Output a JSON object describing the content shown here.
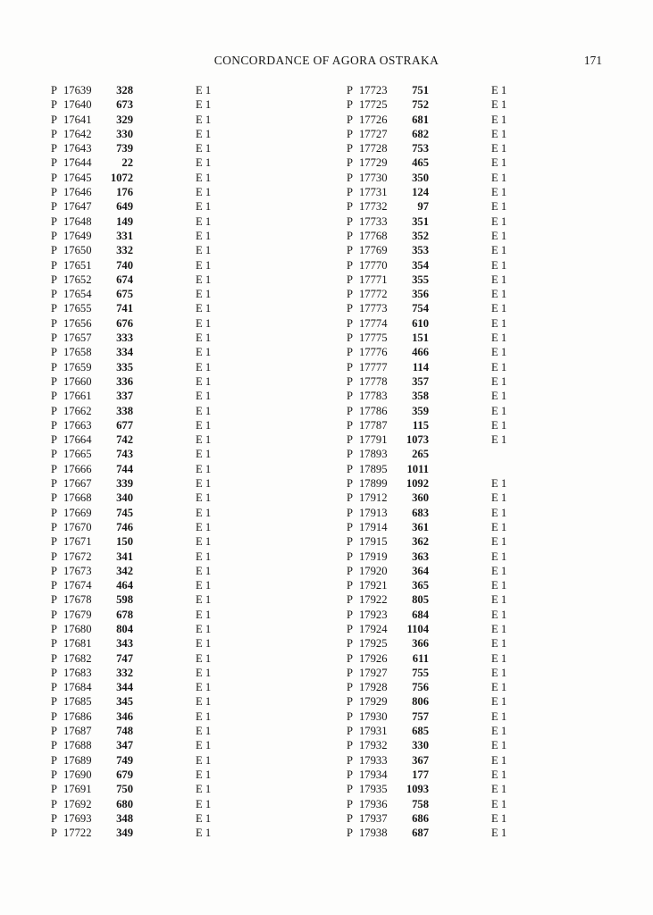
{
  "page": {
    "title": "CONCORDANCE OF AGORA OSTRAKA",
    "page_number": "171"
  },
  "concordance": {
    "prefix": "P",
    "columns": [
      {
        "rows": [
          [
            "17639",
            "328",
            "E 1"
          ],
          [
            "17640",
            "673",
            "E 1"
          ],
          [
            "17641",
            "329",
            "E 1"
          ],
          [
            "17642",
            "330",
            "E 1"
          ],
          [
            "17643",
            "739",
            "E 1"
          ],
          [
            "17644",
            "22",
            "E 1"
          ],
          [
            "17645",
            "1072",
            "E 1"
          ],
          [
            "17646",
            "176",
            "E 1"
          ],
          [
            "17647",
            "649",
            "E 1"
          ],
          [
            "17648",
            "149",
            "E 1"
          ],
          [
            "17649",
            "331",
            "E 1"
          ],
          [
            "17650",
            "332",
            "E 1"
          ],
          [
            "17651",
            "740",
            "E 1"
          ],
          [
            "17652",
            "674",
            "E 1"
          ],
          [
            "17654",
            "675",
            "E 1"
          ],
          [
            "17655",
            "741",
            "E 1"
          ],
          [
            "17656",
            "676",
            "E 1"
          ],
          [
            "17657",
            "333",
            "E 1"
          ],
          [
            "17658",
            "334",
            "E 1"
          ],
          [
            "17659",
            "335",
            "E 1"
          ],
          [
            "17660",
            "336",
            "E 1"
          ],
          [
            "17661",
            "337",
            "E 1"
          ],
          [
            "17662",
            "338",
            "E 1"
          ],
          [
            "17663",
            "677",
            "E 1"
          ],
          [
            "17664",
            "742",
            "E 1"
          ],
          [
            "17665",
            "743",
            "E 1"
          ],
          [
            "17666",
            "744",
            "E 1"
          ],
          [
            "17667",
            "339",
            "E 1"
          ],
          [
            "17668",
            "340",
            "E 1"
          ],
          [
            "17669",
            "745",
            "E 1"
          ],
          [
            "17670",
            "746",
            "E 1"
          ],
          [
            "17671",
            "150",
            "E 1"
          ],
          [
            "17672",
            "341",
            "E 1"
          ],
          [
            "17673",
            "342",
            "E 1"
          ],
          [
            "17674",
            "464",
            "E 1"
          ],
          [
            "17678",
            "598",
            "E 1"
          ],
          [
            "17679",
            "678",
            "E 1"
          ],
          [
            "17680",
            "804",
            "E 1"
          ],
          [
            "17681",
            "343",
            "E 1"
          ],
          [
            "17682",
            "747",
            "E 1"
          ],
          [
            "17683",
            "332",
            "E 1"
          ],
          [
            "17684",
            "344",
            "E 1"
          ],
          [
            "17685",
            "345",
            "E 1"
          ],
          [
            "17686",
            "346",
            "E 1"
          ],
          [
            "17687",
            "748",
            "E 1"
          ],
          [
            "17688",
            "347",
            "E 1"
          ],
          [
            "17689",
            "749",
            "E 1"
          ],
          [
            "17690",
            "679",
            "E 1"
          ],
          [
            "17691",
            "750",
            "E 1"
          ],
          [
            "17692",
            "680",
            "E 1"
          ],
          [
            "17693",
            "348",
            "E 1"
          ],
          [
            "17722",
            "349",
            "E 1"
          ]
        ]
      },
      {
        "rows": [
          [
            "17723",
            "751",
            "E 1"
          ],
          [
            "17725",
            "752",
            "E 1"
          ],
          [
            "17726",
            "681",
            "E 1"
          ],
          [
            "17727",
            "682",
            "E 1"
          ],
          [
            "17728",
            "753",
            "E 1"
          ],
          [
            "17729",
            "465",
            "E 1"
          ],
          [
            "17730",
            "350",
            "E 1"
          ],
          [
            "17731",
            "124",
            "E 1"
          ],
          [
            "17732",
            "97",
            "E 1"
          ],
          [
            "17733",
            "351",
            "E 1"
          ],
          [
            "17768",
            "352",
            "E 1"
          ],
          [
            "17769",
            "353",
            "E 1"
          ],
          [
            "17770",
            "354",
            "E 1"
          ],
          [
            "17771",
            "355",
            "E 1"
          ],
          [
            "17772",
            "356",
            "E 1"
          ],
          [
            "17773",
            "754",
            "E 1"
          ],
          [
            "17774",
            "610",
            "E 1"
          ],
          [
            "17775",
            "151",
            "E 1"
          ],
          [
            "17776",
            "466",
            "E 1"
          ],
          [
            "17777",
            "114",
            "E 1"
          ],
          [
            "17778",
            "357",
            "E 1"
          ],
          [
            "17783",
            "358",
            "E 1"
          ],
          [
            "17786",
            "359",
            "E 1"
          ],
          [
            "17787",
            "115",
            "E 1"
          ],
          [
            "17791",
            "1073",
            "E 1"
          ],
          [
            "17893",
            "265",
            ""
          ],
          [
            "17895",
            "1011",
            ""
          ],
          [
            "17899",
            "1092",
            "E 1"
          ],
          [
            "17912",
            "360",
            "E 1"
          ],
          [
            "17913",
            "683",
            "E 1"
          ],
          [
            "17914",
            "361",
            "E 1"
          ],
          [
            "17915",
            "362",
            "E 1"
          ],
          [
            "17919",
            "363",
            "E 1"
          ],
          [
            "17920",
            "364",
            "E 1"
          ],
          [
            "17921",
            "365",
            "E 1"
          ],
          [
            "17922",
            "805",
            "E 1"
          ],
          [
            "17923",
            "684",
            "E 1"
          ],
          [
            "17924",
            "1104",
            "E 1"
          ],
          [
            "17925",
            "366",
            "E 1"
          ],
          [
            "17926",
            "611",
            "E 1"
          ],
          [
            "17927",
            "755",
            "E 1"
          ],
          [
            "17928",
            "756",
            "E 1"
          ],
          [
            "17929",
            "806",
            "E 1"
          ],
          [
            "17930",
            "757",
            "E 1"
          ],
          [
            "17931",
            "685",
            "E 1"
          ],
          [
            "17932",
            "330",
            "E 1"
          ],
          [
            "17933",
            "367",
            "E 1"
          ],
          [
            "17934",
            "177",
            "E 1"
          ],
          [
            "17935",
            "1093",
            "E 1"
          ],
          [
            "17936",
            "758",
            "E 1"
          ],
          [
            "17937",
            "686",
            "E 1"
          ],
          [
            "17938",
            "687",
            "E 1"
          ]
        ]
      }
    ]
  }
}
